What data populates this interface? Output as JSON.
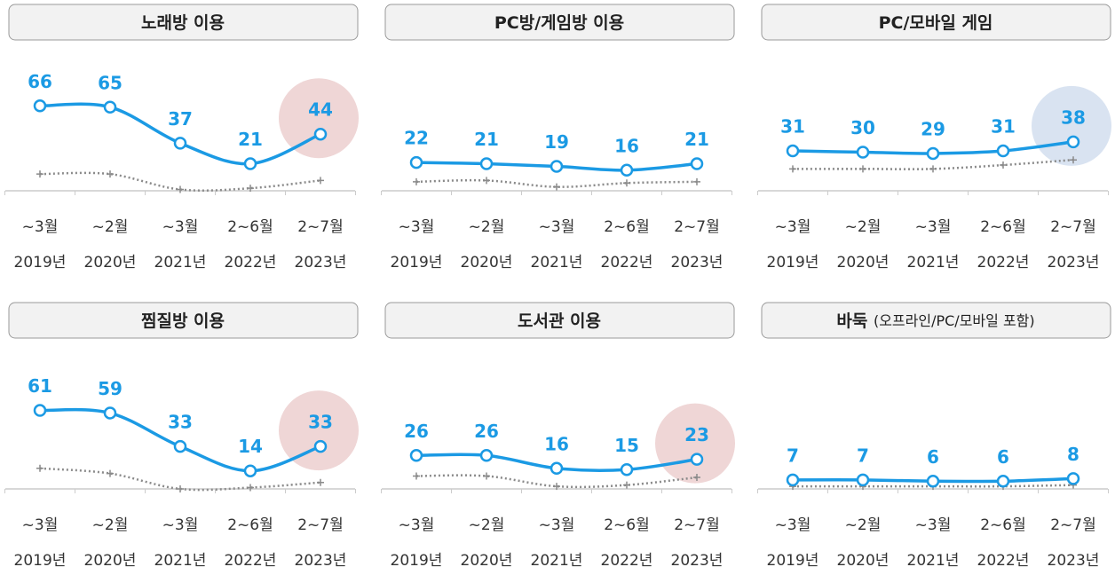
{
  "chart_data": [
    {
      "type": "line",
      "title": "노래방 이용",
      "categories": [
        [
          "~3월",
          "2019년"
        ],
        [
          "~2월",
          "2020년"
        ],
        [
          "~3월",
          "2021년"
        ],
        [
          "2~6월",
          "2022년"
        ],
        [
          "2~7월",
          "2023년"
        ]
      ],
      "series": [
        {
          "color": "#1b9ae4",
          "style": "solid",
          "values": [
            66,
            65,
            37,
            21,
            44
          ]
        },
        {
          "color": "#8a8a8a",
          "style": "dotted",
          "values": [
            13,
            13,
            1,
            2,
            8
          ]
        }
      ],
      "ylim": [
        0,
        80
      ],
      "highlight_color": "#efd6d6"
    },
    {
      "type": "line",
      "title": "PC방/게임방 이용",
      "categories": [
        [
          "~3월",
          "2019년"
        ],
        [
          "~2월",
          "2020년"
        ],
        [
          "~3월",
          "2021년"
        ],
        [
          "2~6월",
          "2022년"
        ],
        [
          "2~7월",
          "2023년"
        ]
      ],
      "series": [
        {
          "color": "#1b9ae4",
          "style": "solid",
          "values": [
            22,
            21,
            19,
            16,
            21
          ]
        },
        {
          "color": "#8a8a8a",
          "style": "dotted",
          "values": [
            7,
            8,
            3,
            6,
            7
          ]
        }
      ],
      "ylim": [
        0,
        80
      ]
    },
    {
      "type": "line",
      "title": "PC/모바일 게임",
      "categories": [
        [
          "~3월",
          "2019년"
        ],
        [
          "~2월",
          "2020년"
        ],
        [
          "~3월",
          "2021년"
        ],
        [
          "2~6월",
          "2022년"
        ],
        [
          "2~7월",
          "2023년"
        ]
      ],
      "series": [
        {
          "color": "#1b9ae4",
          "style": "solid",
          "values": [
            31,
            30,
            29,
            31,
            38
          ]
        },
        {
          "color": "#8a8a8a",
          "style": "dotted",
          "values": [
            17,
            17,
            17,
            20,
            24
          ]
        }
      ],
      "ylim": [
        0,
        80
      ],
      "highlight_color": "#d9e3f1"
    },
    {
      "type": "line",
      "title": "찜질방 이용",
      "categories": [
        [
          "~3월",
          "2019년"
        ],
        [
          "~2월",
          "2020년"
        ],
        [
          "~3월",
          "2021년"
        ],
        [
          "2~6월",
          "2022년"
        ],
        [
          "2~7월",
          "2023년"
        ]
      ],
      "series": [
        {
          "color": "#1b9ae4",
          "style": "solid",
          "values": [
            61,
            59,
            33,
            14,
            33
          ]
        },
        {
          "color": "#8a8a8a",
          "style": "dotted",
          "values": [
            16,
            12,
            0,
            1,
            5
          ]
        }
      ],
      "ylim": [
        0,
        80
      ],
      "highlight_color": "#efd6d6"
    },
    {
      "type": "line",
      "title": "도서관 이용",
      "categories": [
        [
          "~3월",
          "2019년"
        ],
        [
          "~2월",
          "2020년"
        ],
        [
          "~3월",
          "2021년"
        ],
        [
          "2~6월",
          "2022년"
        ],
        [
          "2~7월",
          "2023년"
        ]
      ],
      "series": [
        {
          "color": "#1b9ae4",
          "style": "solid",
          "values": [
            26,
            26,
            16,
            15,
            23
          ]
        },
        {
          "color": "#8a8a8a",
          "style": "dotted",
          "values": [
            10,
            10,
            2,
            3,
            9
          ]
        }
      ],
      "ylim": [
        0,
        80
      ],
      "highlight_color": "#efd6d6"
    },
    {
      "type": "line",
      "title": "바둑",
      "subtitle": "(오프라인/PC/모바일 포함)",
      "categories": [
        [
          "~3월",
          "2019년"
        ],
        [
          "~2월",
          "2020년"
        ],
        [
          "~3월",
          "2021년"
        ],
        [
          "2~6월",
          "2022년"
        ],
        [
          "2~7월",
          "2023년"
        ]
      ],
      "series": [
        {
          "color": "#1b9ae4",
          "style": "solid",
          "values": [
            7,
            7,
            6,
            6,
            8
          ]
        },
        {
          "color": "#8a8a8a",
          "style": "dotted",
          "values": [
            2,
            2,
            2,
            2,
            3
          ]
        }
      ],
      "ylim": [
        0,
        80
      ]
    }
  ]
}
